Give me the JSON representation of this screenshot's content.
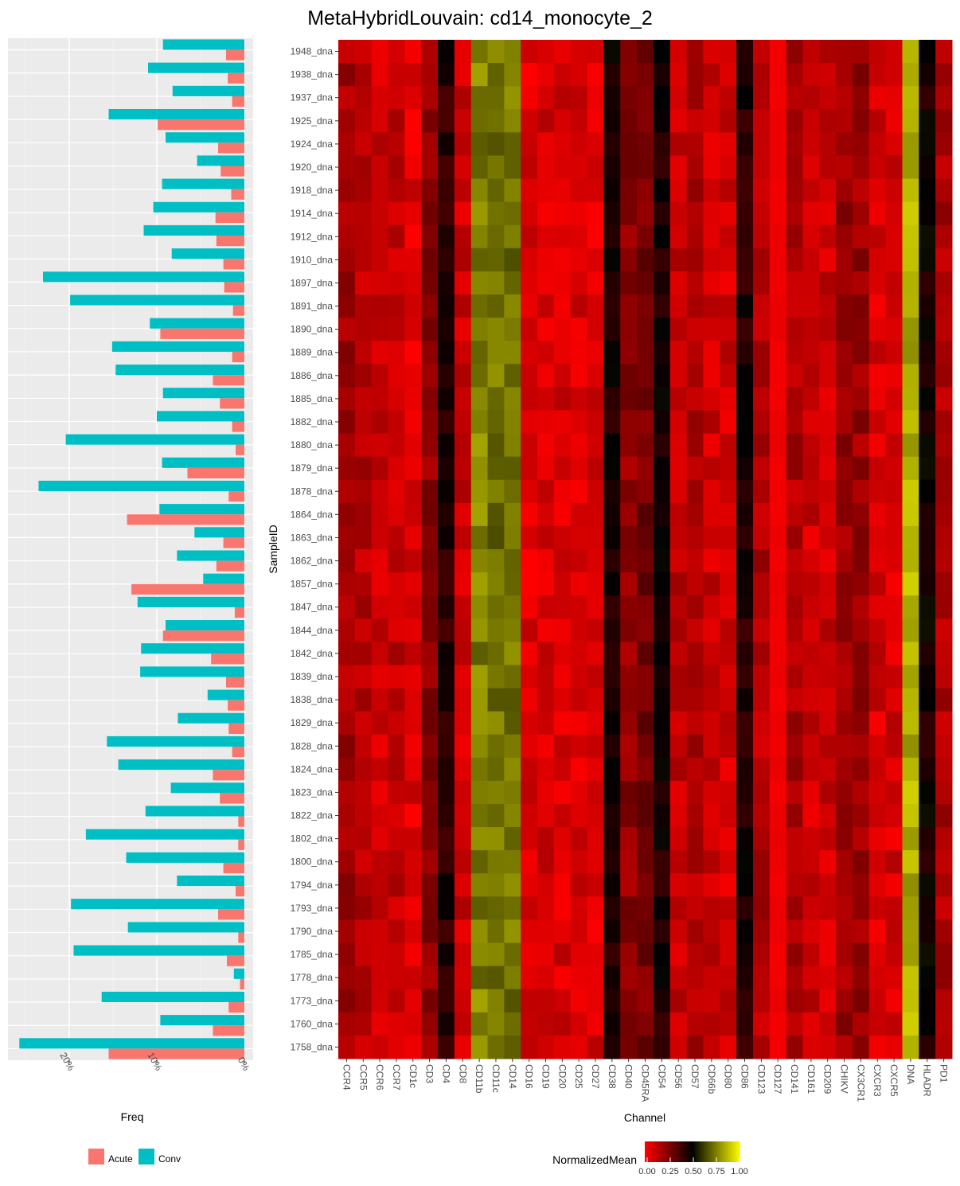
{
  "title": "MetaHybridLouvain: cd14_monocyte_2",
  "chart_data": [
    {
      "type": "bar",
      "orientation": "horizontal",
      "xlabel": "Freq",
      "ylabel": "",
      "xlim": [
        0,
        0.27
      ],
      "x_ticks": [
        "0%",
        "10%",
        "20%"
      ],
      "x_tick_values": [
        0,
        0.1,
        0.2
      ],
      "categories": [
        "1948_dna",
        "1938_dna",
        "1937_dna",
        "1925_dna",
        "1924_dna",
        "1920_dna",
        "1918_dna",
        "1914_dna",
        "1912_dna",
        "1910_dna",
        "1897_dna",
        "1891_dna",
        "1890_dna",
        "1889_dna",
        "1886_dna",
        "1885_dna",
        "1882_dna",
        "1880_dna",
        "1879_dna",
        "1878_dna",
        "1864_dna",
        "1863_dna",
        "1862_dna",
        "1857_dna",
        "1847_dna",
        "1844_dna",
        "1842_dna",
        "1839_dna",
        "1838_dna",
        "1829_dna",
        "1828_dna",
        "1824_dna",
        "1823_dna",
        "1822_dna",
        "1802_dna",
        "1800_dna",
        "1794_dna",
        "1793_dna",
        "1790_dna",
        "1785_dna",
        "1778_dna",
        "1773_dna",
        "1760_dna",
        "1758_dna"
      ],
      "series": [
        {
          "name": "Acute",
          "color": "#F8766D",
          "values": [
            0.021,
            0.019,
            0.014,
            0.099,
            0.03,
            0.027,
            0.015,
            0.033,
            0.032,
            0.024,
            0.023,
            0.013,
            0.096,
            0.014,
            0.036,
            0.028,
            0.014,
            0.01,
            0.065,
            0.018,
            0.134,
            0.024,
            0.032,
            0.129,
            0.011,
            0.093,
            0.038,
            0.021,
            0.019,
            0.018,
            0.014,
            0.036,
            0.028,
            0.007,
            0.007,
            0.024,
            0.01,
            0.03,
            0.007,
            0.02,
            0.005,
            0.018,
            0.036,
            0.155
          ]
        },
        {
          "name": "Conv",
          "color": "#00BFC4",
          "values": [
            0.093,
            0.11,
            0.082,
            0.155,
            0.09,
            0.054,
            0.094,
            0.104,
            0.115,
            0.083,
            0.23,
            0.199,
            0.108,
            0.151,
            0.147,
            0.093,
            0.1,
            0.204,
            0.094,
            0.235,
            0.097,
            0.057,
            0.077,
            0.047,
            0.122,
            0.09,
            0.118,
            0.119,
            0.042,
            0.076,
            0.157,
            0.144,
            0.084,
            0.113,
            0.181,
            0.135,
            0.077,
            0.198,
            0.133,
            0.195,
            0.012,
            0.163,
            0.096,
            0.257
          ]
        }
      ],
      "legend_position": "bottom"
    },
    {
      "type": "heatmap",
      "xlabel": "Channel",
      "ylabel": "SampleID",
      "legend_title": "NormalizedMean",
      "legend_ticks": [
        "0.00",
        "0.25",
        "0.50",
        "0.75",
        "1.00"
      ],
      "colorscale": [
        "#FF0000",
        "#000000",
        "#FFFF00"
      ],
      "x_categories": [
        "CCR4",
        "CCR5",
        "CCR6",
        "CCR7",
        "CD1c",
        "CD3",
        "CD4",
        "CD8",
        "CD11b",
        "CD11c",
        "CD14",
        "CD16",
        "CD19",
        "CD20",
        "CD25",
        "CD27",
        "CD38",
        "CD40",
        "CD45RA",
        "CD54",
        "CD56",
        "CD57",
        "CD66b",
        "CD80",
        "CD86",
        "CD123",
        "CD127",
        "CD141",
        "CD161",
        "CD209",
        "CHIKV",
        "CX3CR1",
        "CXCR3",
        "CXCR5",
        "DNA",
        "HLADR",
        "PD1"
      ],
      "column_means": [
        0.18,
        0.14,
        0.1,
        0.12,
        0.06,
        0.22,
        0.42,
        0.1,
        0.75,
        0.72,
        0.72,
        0.06,
        0.08,
        0.08,
        0.08,
        0.07,
        0.45,
        0.22,
        0.27,
        0.45,
        0.12,
        0.16,
        0.1,
        0.09,
        0.44,
        0.15,
        0.02,
        0.16,
        0.1,
        0.1,
        0.2,
        0.2,
        0.08,
        0.08,
        0.84,
        0.47,
        0.16
      ],
      "row_labels_ref": "same as bar categories"
    }
  ]
}
